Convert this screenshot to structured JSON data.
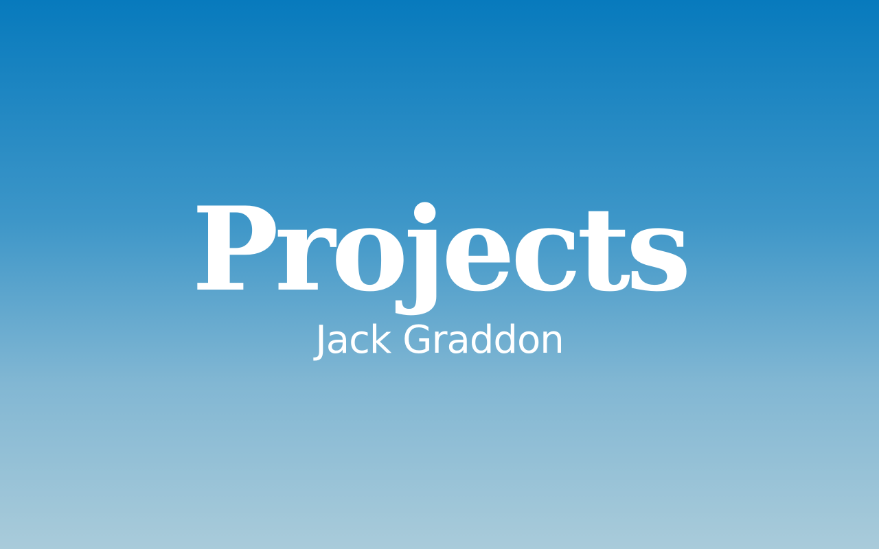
{
  "hero": {
    "title": "Projects",
    "subtitle": "Jack Graddon"
  },
  "colors": {
    "gradient_top": "#077abd",
    "gradient_bottom": "#a9cbda",
    "text": "#ffffff"
  }
}
